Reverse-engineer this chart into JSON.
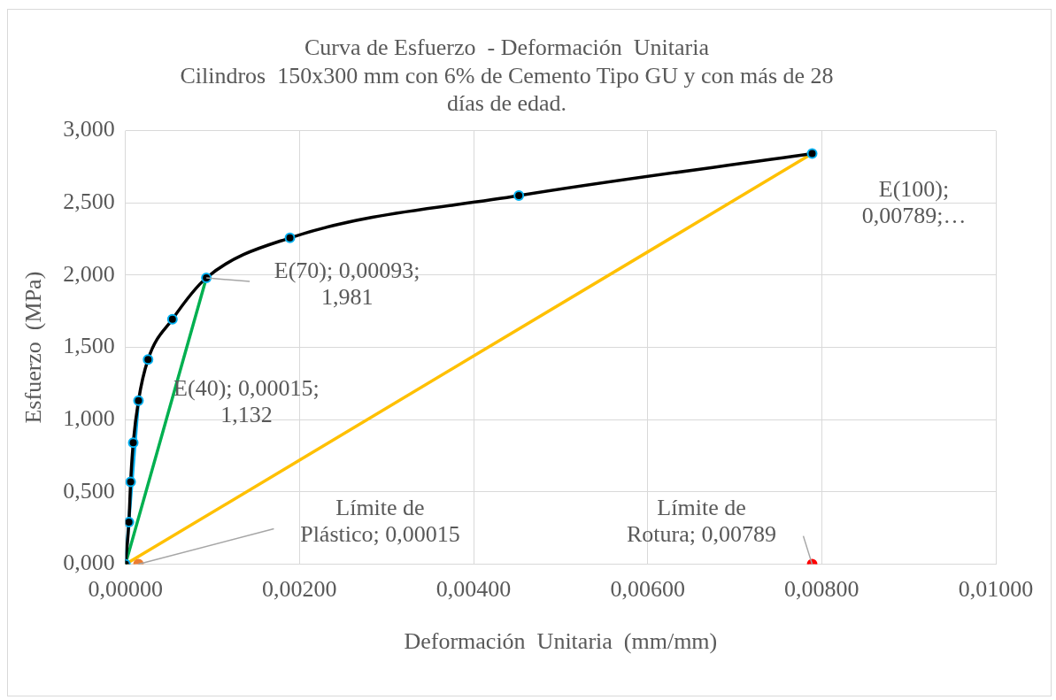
{
  "chart_data": {
    "type": "scatter",
    "title": "Curva de Esfuerzo  - Deformación  Unitaria",
    "subtitle": "Cilindros  150x300 mm con 6% de Cemento Tipo GU y con más de 28 días de edad.",
    "xlabel": "Deformación  Unitaria  (mm/mm)",
    "ylabel": "Esfuerzo  (MPa)",
    "xlim": [
      0,
      0.01
    ],
    "xticks": [
      {
        "value": 0,
        "label": "0,00000"
      },
      {
        "value": 0.002,
        "label": "0,00200"
      },
      {
        "value": 0.004,
        "label": "0,00400"
      },
      {
        "value": 0.006,
        "label": "0,00600"
      },
      {
        "value": 0.008,
        "label": "0,00800"
      },
      {
        "value": 0.01,
        "label": "0,01000"
      }
    ],
    "ylim": [
      0,
      3
    ],
    "yticks": [
      {
        "value": 0,
        "label": "0,000"
      },
      {
        "value": 0.5,
        "label": "0,500"
      },
      {
        "value": 1,
        "label": "1,000"
      },
      {
        "value": 1.5,
        "label": "1,500"
      },
      {
        "value": 2,
        "label": "2,000"
      },
      {
        "value": 2.5,
        "label": "2,500"
      },
      {
        "value": 3,
        "label": "3,000"
      }
    ],
    "grid": true,
    "legend": false,
    "series": [
      {
        "type": "line",
        "color": "#000000",
        "marker": "circle",
        "x": [
          0,
          4e-05,
          6e-05,
          9e-05,
          0.00015,
          0.00026,
          0.00054,
          0.00093,
          0.00189,
          0.00452,
          0.00789
        ],
        "values": [
          0,
          0.291,
          0.57,
          0.841,
          1.132,
          1.417,
          1.695,
          1.981,
          2.258,
          2.55,
          2.841
        ]
      },
      {
        "type": "line",
        "color": "#00b0f0",
        "marker": "none",
        "x": [
          0,
          0.00015
        ],
        "values": [
          0,
          1.132
        ]
      },
      {
        "type": "line",
        "color": "#00b050",
        "marker": "none",
        "x": [
          0,
          0.00093
        ],
        "values": [
          0,
          1.981
        ]
      },
      {
        "type": "line",
        "color": "#ffc000",
        "marker": "none",
        "x": [
          0,
          0.00789
        ],
        "values": [
          0,
          2.841
        ]
      },
      {
        "type": "scatter",
        "color": "#ed7d31",
        "marker": "circle",
        "x": [
          0.00015
        ],
        "values": [
          0
        ]
      },
      {
        "type": "scatter",
        "color": "#ff0000",
        "marker": "circle",
        "x": [
          0.00789
        ],
        "values": [
          0
        ]
      }
    ],
    "annotations": [
      {
        "text": "E(40); 0,00015; 1,132",
        "x": 0.00015,
        "y": 1.132
      },
      {
        "text": "E(70); 0,00093; 1,981",
        "x": 0.00093,
        "y": 1.981
      },
      {
        "text": "E(100); 0,00789;…",
        "x": 0.00789,
        "y": 2.841
      },
      {
        "text": "Límite de Plástico; 0,00015",
        "x": 0.00015,
        "y": 0
      },
      {
        "text": "Límite de Rotura; 0,00789",
        "x": 0.00789,
        "y": 0
      }
    ]
  }
}
